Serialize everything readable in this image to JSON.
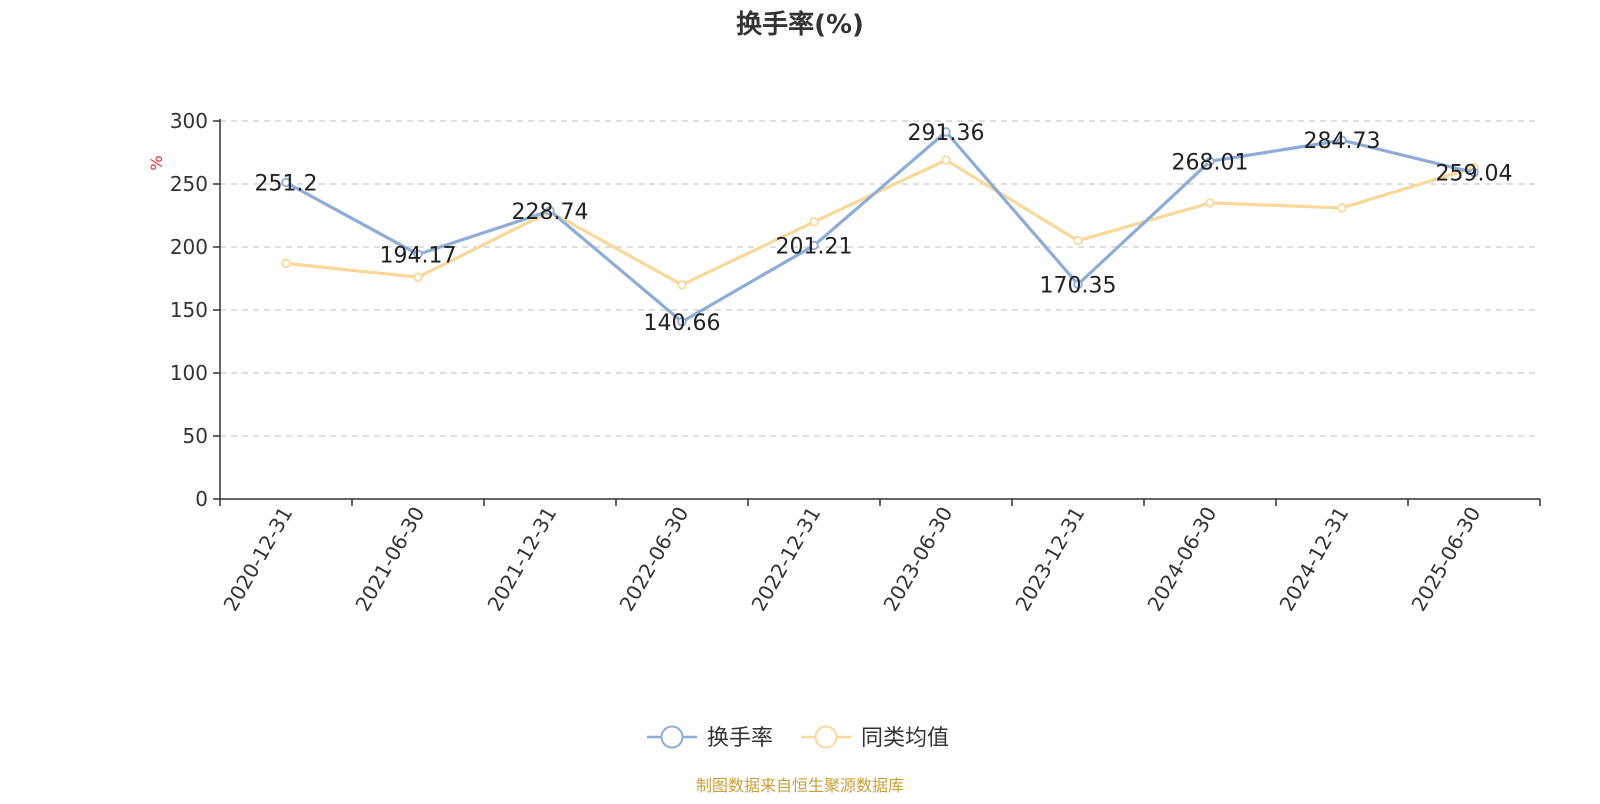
{
  "chart_data": {
    "type": "line",
    "title": "换手率(%)",
    "unit_label": "%",
    "categories": [
      "2020-12-31",
      "2021-06-30",
      "2021-12-31",
      "2022-06-30",
      "2022-12-31",
      "2023-06-30",
      "2023-12-31",
      "2024-06-30",
      "2024-12-31",
      "2025-06-30"
    ],
    "y_ticks": [
      "0",
      "50",
      "100",
      "150",
      "200",
      "250",
      "300"
    ],
    "ylim": [
      0,
      300
    ],
    "grid": true,
    "legend_position": "bottom-center",
    "series": [
      {
        "name": "换手率",
        "color": "#8eacd8",
        "values": [
          251.2,
          194.17,
          228.74,
          140.66,
          201.21,
          291.36,
          170.35,
          268.01,
          284.73,
          259.04
        ],
        "labels": [
          "251.2",
          "194.17",
          "228.74",
          "140.66",
          "201.21",
          "291.36",
          "170.35",
          "268.01",
          "284.73",
          "259.04"
        ]
      },
      {
        "name": "同类均值",
        "color": "#fad89a",
        "values": [
          187,
          176,
          228,
          170,
          220,
          269,
          205,
          235,
          231,
          263
        ]
      }
    ]
  },
  "footer": {
    "source": "制图数据来自恒生聚源数据库",
    "source_color": "#c8a03c"
  },
  "colors": {
    "axis": "#333333",
    "grid": "#cccccc",
    "unit": "#e03030"
  }
}
